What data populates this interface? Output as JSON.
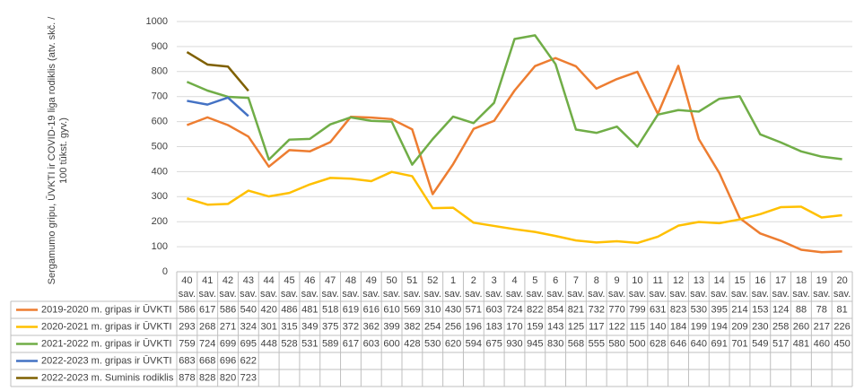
{
  "chart_data": {
    "type": "line",
    "y_axis_label": "Sergamumo gripu, ŪVKTI  ir COVID-19 liga rodiklis (atv. skč. / 100 tūkst. gyv.)",
    "categories": [
      "40",
      "41",
      "42",
      "43",
      "44",
      "45",
      "46",
      "47",
      "48",
      "49",
      "50",
      "51",
      "52",
      "1",
      "2",
      "3",
      "4",
      "5",
      "6",
      "7",
      "8",
      "9",
      "10",
      "11",
      "12",
      "13",
      "14",
      "15",
      "16",
      "17",
      "18",
      "19",
      "20"
    ],
    "category_unit": "sav.",
    "ylim": [
      0,
      1000
    ],
    "yticks": [
      0,
      100,
      200,
      300,
      400,
      500,
      600,
      700,
      800,
      900,
      1000
    ],
    "grid": true,
    "series": [
      {
        "name": "2019-2020 m. gripas ir ŪVKTI",
        "color": "#ed7d31",
        "values": [
          586,
          617,
          586,
          540,
          420,
          486,
          481,
          518,
          619,
          616,
          610,
          569,
          310,
          430,
          571,
          603,
          724,
          822,
          854,
          821,
          732,
          770,
          799,
          631,
          823,
          530,
          395,
          214,
          153,
          124,
          88,
          78,
          81
        ]
      },
      {
        "name": "2020-2021 m. gripas ir ŪVKTI",
        "color": "#ffc000",
        "values": [
          293,
          268,
          271,
          324,
          301,
          315,
          349,
          375,
          372,
          362,
          399,
          382,
          254,
          256,
          196,
          183,
          170,
          159,
          143,
          125,
          117,
          122,
          115,
          140,
          184,
          199,
          194,
          209,
          230,
          258,
          260,
          217,
          226
        ]
      },
      {
        "name": "2021-2022 m. gripas ir ŪVKTI",
        "color": "#70ad47",
        "values": [
          759,
          724,
          699,
          695,
          448,
          528,
          531,
          589,
          617,
          603,
          600,
          428,
          530,
          620,
          594,
          675,
          930,
          945,
          830,
          568,
          555,
          580,
          500,
          628,
          646,
          640,
          691,
          701,
          549,
          517,
          481,
          460,
          450
        ]
      },
      {
        "name": "2022-2023 m. gripas ir ŪVKTI",
        "color": "#4472c4",
        "values": [
          683,
          668,
          696,
          622,
          null,
          null,
          null,
          null,
          null,
          null,
          null,
          null,
          null,
          null,
          null,
          null,
          null,
          null,
          null,
          null,
          null,
          null,
          null,
          null,
          null,
          null,
          null,
          null,
          null,
          null,
          null,
          null,
          null
        ]
      },
      {
        "name": "2022-2023 m. Suminis rodiklis",
        "color": "#7f6000",
        "values": [
          878,
          828,
          820,
          723,
          null,
          null,
          null,
          null,
          null,
          null,
          null,
          null,
          null,
          null,
          null,
          null,
          null,
          null,
          null,
          null,
          null,
          null,
          null,
          null,
          null,
          null,
          null,
          null,
          null,
          null,
          null,
          null,
          null
        ]
      }
    ]
  }
}
